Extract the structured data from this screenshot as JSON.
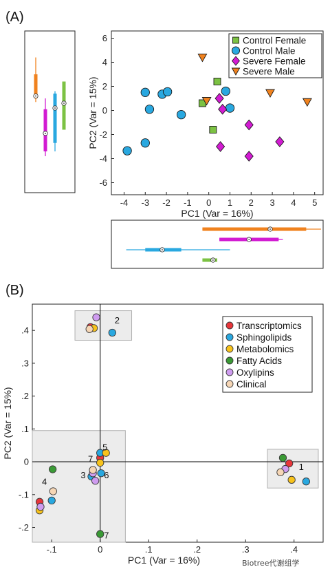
{
  "panel_a_label": "(A)",
  "panel_b_label": "(B)",
  "watermark": "Biotree代谢组学",
  "chart_data": [
    {
      "id": "A",
      "type": "scatter",
      "xlabel": "PC1 (Var = 16%)",
      "ylabel": "PC2 (Var = 15%)",
      "xlim": [
        -4.6,
        5.4
      ],
      "ylim": [
        -7,
        6.6
      ],
      "xticks": [
        -4,
        -3,
        -2,
        -1,
        0,
        1,
        2,
        3,
        4,
        5
      ],
      "yticks": [
        -6,
        -4,
        -2,
        0,
        2,
        4,
        6
      ],
      "legend_position": "top-right",
      "series": [
        {
          "name": "Control Female",
          "marker": "square",
          "color": "#7cc243",
          "points": [
            [
              -0.3,
              0.6
            ],
            [
              0.4,
              2.4
            ],
            [
              0.2,
              -1.6
            ]
          ]
        },
        {
          "name": "Control Male",
          "marker": "circle",
          "color": "#29a8e0",
          "points": [
            [
              -3.0,
              1.5
            ],
            [
              -2.8,
              0.1
            ],
            [
              -2.2,
              1.35
            ],
            [
              -1.95,
              1.55
            ],
            [
              -1.3,
              -0.35
            ],
            [
              0.8,
              1.6
            ],
            [
              1.0,
              0.2
            ],
            [
              -3.0,
              -2.7
            ],
            [
              -3.85,
              -3.35
            ]
          ]
        },
        {
          "name": "Severe Female",
          "marker": "diamond",
          "color": "#d21bd2",
          "points": [
            [
              0.5,
              1.0
            ],
            [
              0.65,
              0.1
            ],
            [
              1.9,
              -1.2
            ],
            [
              3.35,
              -2.6
            ],
            [
              0.55,
              -3.0
            ],
            [
              1.9,
              -3.8
            ]
          ]
        },
        {
          "name": "Severe Male",
          "marker": "triangle-down",
          "color": "#f0821e",
          "points": [
            [
              -0.3,
              4.4
            ],
            [
              -0.1,
              0.8
            ],
            [
              2.9,
              1.45
            ],
            [
              4.65,
              0.7
            ]
          ]
        }
      ],
      "marginal_y": [
        {
          "color": "#f0821e",
          "median": 1.2,
          "iqr": [
            1.0,
            3.0
          ],
          "range": [
            0.7,
            4.4
          ]
        },
        {
          "color": "#d21bd2",
          "median": -1.9,
          "iqr": [
            -3.4,
            0.1
          ],
          "range": [
            -3.8,
            1.0
          ]
        },
        {
          "color": "#29a8e0",
          "median": 0.2,
          "iqr": [
            -2.7,
            1.4
          ],
          "range": [
            -3.4,
            1.6
          ]
        },
        {
          "color": "#7cc243",
          "median": 0.6,
          "iqr": [
            -1.6,
            2.4
          ],
          "range": [
            -1.6,
            2.4
          ]
        }
      ],
      "marginal_x": [
        {
          "color": "#f0821e",
          "median": 2.9,
          "iqr": [
            -0.3,
            4.6
          ],
          "range": [
            -0.3,
            5.3
          ]
        },
        {
          "color": "#d21bd2",
          "median": 1.9,
          "iqr": [
            0.5,
            3.3
          ],
          "range": [
            0.5,
            3.5
          ]
        },
        {
          "color": "#29a8e0",
          "median": -2.2,
          "iqr": [
            -3.0,
            -1.3
          ],
          "range": [
            -3.9,
            1.0
          ]
        },
        {
          "color": "#7cc243",
          "median": 0.2,
          "iqr": [
            -0.3,
            0.4
          ],
          "range": [
            -0.3,
            0.4
          ]
        }
      ]
    },
    {
      "id": "B",
      "type": "scatter",
      "xlabel": "PC1 (Var = 16%)",
      "ylabel": "PC2 (Var = 15%)",
      "xlim": [
        -0.14,
        0.46
      ],
      "ylim": [
        -0.245,
        0.48
      ],
      "xticks": [
        -0.1,
        0,
        0.1,
        0.2,
        0.3,
        0.4
      ],
      "yticks": [
        -0.2,
        -0.1,
        0,
        0.1,
        0.2,
        0.3,
        0.4
      ],
      "legend_position": "right",
      "series": [
        {
          "name": "Transcriptomics",
          "color": "#e8353a",
          "points": [
            [
              -0.02,
              0.41
            ],
            [
              0.0,
              0.012
            ],
            [
              0.39,
              -0.005
            ],
            [
              -0.125,
              -0.122
            ]
          ]
        },
        {
          "name": "Sphingolipids",
          "color": "#29a8e0",
          "points": [
            [
              0.025,
              0.393
            ],
            [
              0.0,
              0.027
            ],
            [
              0.002,
              -0.035
            ],
            [
              0.425,
              -0.06
            ],
            [
              -0.1,
              -0.118
            ],
            [
              -0.018,
              -0.045
            ]
          ]
        },
        {
          "name": "Metabolomics",
          "color": "#f7c21b",
          "points": [
            [
              -0.013,
              0.407
            ],
            [
              0.012,
              0.027
            ],
            [
              0.0,
              -0.003
            ],
            [
              0.395,
              -0.055
            ],
            [
              -0.125,
              -0.148
            ]
          ]
        },
        {
          "name": "Fatty Acids",
          "color": "#3a9a35",
          "points": [
            [
              0.0,
              -0.22
            ],
            [
              0.377,
              0.012
            ],
            [
              -0.098,
              -0.023
            ]
          ]
        },
        {
          "name": "Oxylipins",
          "color": "#cf9cf0",
          "points": [
            [
              -0.008,
              0.44
            ],
            [
              0.382,
              -0.022
            ],
            [
              -0.123,
              -0.137
            ],
            [
              -0.01,
              -0.058
            ],
            [
              -0.015,
              -0.035
            ]
          ]
        },
        {
          "name": "Clinical",
          "color": "#f6d6b5",
          "points": [
            [
              -0.022,
              0.404
            ],
            [
              0.372,
              -0.032
            ],
            [
              -0.097,
              -0.09
            ],
            [
              -0.015,
              -0.025
            ]
          ]
        }
      ],
      "group_labels": [
        {
          "text": "2",
          "at": [
            0.035,
            0.432
          ]
        },
        {
          "text": "5",
          "at": [
            0.01,
            0.045
          ]
        },
        {
          "text": "7",
          "at": [
            -0.02,
            0.01
          ]
        },
        {
          "text": "3",
          "at": [
            -0.035,
            -0.04
          ]
        },
        {
          "text": "6",
          "at": [
            0.013,
            -0.04
          ]
        },
        {
          "text": "4",
          "at": [
            -0.115,
            -0.06
          ]
        },
        {
          "text": "1",
          "at": [
            0.415,
            -0.015
          ]
        },
        {
          "text": "7",
          "at": [
            0.013,
            -0.223
          ]
        }
      ],
      "group_boxes": [
        {
          "x": [
            -0.052,
            0.065
          ],
          "y": [
            0.37,
            0.46
          ]
        },
        {
          "x": [
            -0.14,
            0.052
          ],
          "y": [
            -0.245,
            0.095
          ]
        },
        {
          "x": [
            0.345,
            0.45
          ],
          "y": [
            -0.08,
            0.038
          ]
        }
      ]
    }
  ]
}
